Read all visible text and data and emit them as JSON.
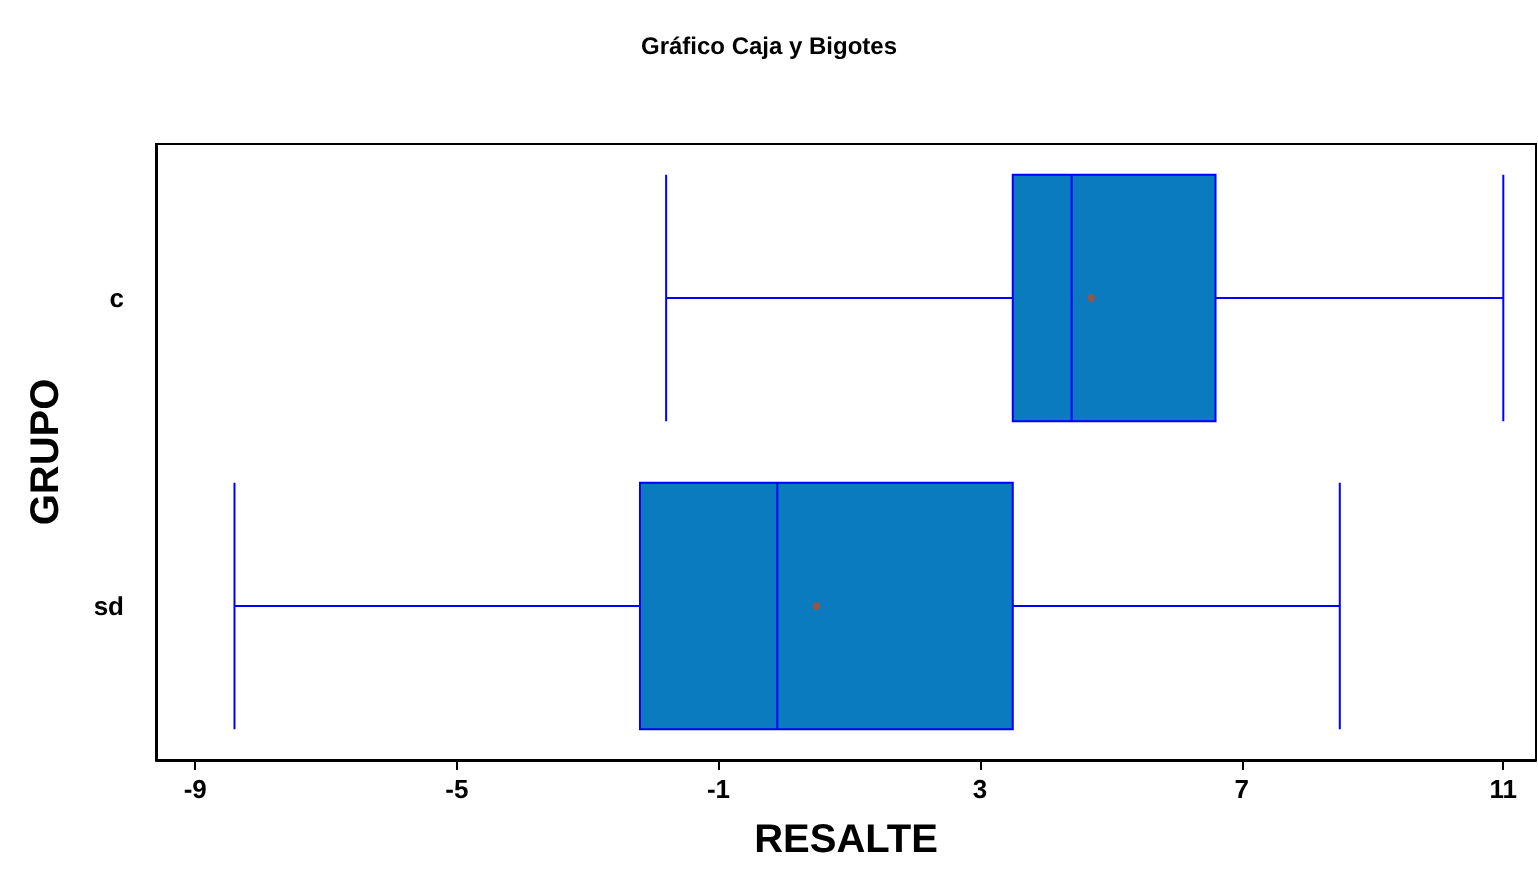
{
  "chart_data": {
    "type": "box",
    "title": "Gráfico Caja y Bigotes",
    "xlabel": "RESALTE",
    "ylabel": "GRUPO",
    "orientation": "horizontal",
    "categories": [
      "c",
      "sd"
    ],
    "boxes": [
      {
        "low": -1.8,
        "q1": 3.5,
        "median": 4.4,
        "q3": 6.6,
        "high": 11.0,
        "mean": 4.7
      },
      {
        "low": -8.4,
        "q1": -2.2,
        "median": -0.1,
        "q3": 3.5,
        "high": 8.5,
        "mean": 0.5
      }
    ],
    "color": "#0a7bbf",
    "xlim": [
      -9.6,
      11.5
    ],
    "xticks": [
      -9,
      -5,
      -1,
      3,
      7,
      11
    ]
  }
}
